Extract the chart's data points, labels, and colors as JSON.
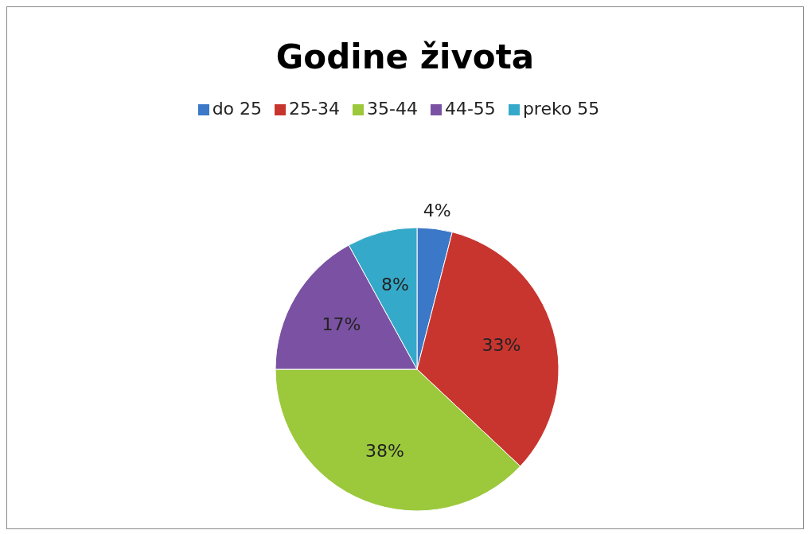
{
  "chart_data": {
    "type": "pie",
    "title": "Godine života",
    "categories": [
      "do 25",
      "25-34",
      "35-44",
      "44-55",
      "preko 55"
    ],
    "values": [
      4,
      33,
      38,
      17,
      8
    ],
    "value_labels": [
      "4%",
      "33%",
      "38%",
      "17%",
      "8%"
    ],
    "colors": [
      "#3b78c8",
      "#c8352f",
      "#9cc83c",
      "#7b52a3",
      "#35a9c9"
    ],
    "legend": "top"
  }
}
